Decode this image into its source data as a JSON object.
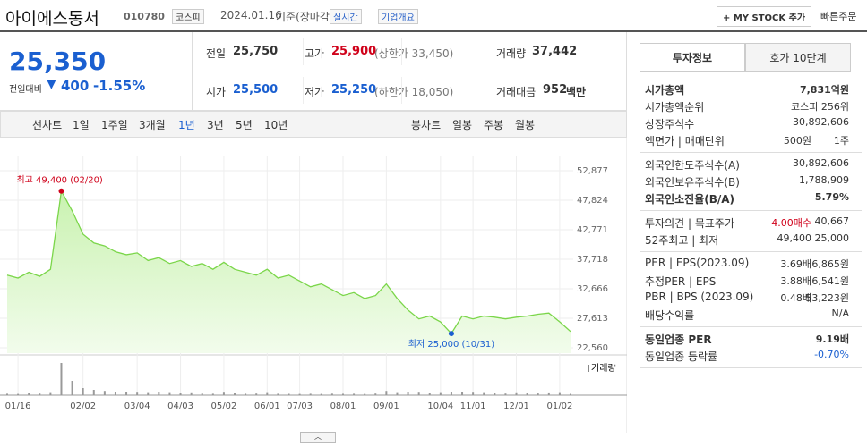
{
  "header": {
    "name": "아이에스동서",
    "code": "010780",
    "market": "코스피",
    "date": "2024.01.16",
    "basis": "기준(장마감)",
    "realtime": "실시간",
    "company": "기업개요",
    "mystock": "+ MY STOCK 추가",
    "order": "빠른주문"
  },
  "quote": {
    "price": "25,350",
    "change_label": "전일대비",
    "change": "400",
    "change_pct": "-1.55%"
  },
  "summary": [
    {
      "label": "전일",
      "value": "25,750"
    },
    {
      "label": "고가",
      "value": "25,900",
      "note": "(상한가 33,450)"
    },
    {
      "label": "거래량",
      "value": "37,442"
    },
    {
      "label": "시가",
      "value": "25,500"
    },
    {
      "label": "저가",
      "value": "25,250",
      "note": "(하한가 18,050)"
    },
    {
      "label": "거래대금",
      "value": "952",
      "note": "백만"
    }
  ],
  "periods": {
    "label": "선차트",
    "items": [
      "1일",
      "1주일",
      "3개월",
      "1년",
      "3년",
      "5년",
      "10년"
    ],
    "candle_label": "봉차트",
    "candle_items": [
      "일봉",
      "주봉",
      "월봉"
    ]
  },
  "chart_data": {
    "type": "line",
    "color": "#7bd64a",
    "categories": [
      null,
      "01/16",
      null,
      null,
      null,
      null,
      null,
      "02/02",
      null,
      null,
      null,
      null,
      "03/04",
      null,
      null,
      null,
      "04/03",
      null,
      null,
      null,
      "05/02",
      null,
      null,
      null,
      "06/01",
      null,
      null,
      "07/03",
      null,
      null,
      null,
      "08/01",
      null,
      null,
      null,
      "09/01",
      null,
      null,
      null,
      null,
      "10/04",
      null,
      null,
      "11/01",
      null,
      null,
      null,
      "12/01",
      null,
      null,
      null,
      "01/02",
      null
    ],
    "values": [
      35000,
      34500,
      35500,
      34800,
      36000,
      49400,
      46000,
      42000,
      40500,
      40000,
      39000,
      38500,
      38800,
      37500,
      38000,
      37000,
      37500,
      36500,
      37000,
      36000,
      37200,
      36000,
      35500,
      35000,
      36000,
      34500,
      35000,
      34000,
      33000,
      33500,
      32500,
      31500,
      32000,
      31000,
      31500,
      33500,
      31000,
      29000,
      27500,
      28000,
      27000,
      25000,
      28000,
      27500,
      28000,
      27800,
      27500,
      27800,
      28000,
      28300,
      28500,
      27000,
      25350
    ],
    "volume_name": "거래량",
    "volume": [
      40000,
      35000,
      50000,
      45000,
      60000,
      900000,
      400000,
      200000,
      150000,
      120000,
      90000,
      80000,
      70000,
      60000,
      80000,
      60000,
      50000,
      55000,
      45000,
      40000,
      70000,
      50000,
      40000,
      45000,
      60000,
      40000,
      38000,
      35000,
      40000,
      36000,
      42000,
      38000,
      40000,
      35000,
      45000,
      120000,
      60000,
      80000,
      70000,
      50000,
      60000,
      90000,
      100000,
      70000,
      60000,
      50000,
      45000,
      55000,
      50000,
      48000,
      52000,
      60000,
      37442
    ],
    "ylim": [
      22560,
      52877
    ],
    "yticks": [
      {
        "value": 22560,
        "label": "22,560"
      },
      {
        "value": 27613,
        "label": "27,613"
      },
      {
        "value": 32666,
        "label": "32,666"
      },
      {
        "value": 37718,
        "label": "37,718"
      },
      {
        "value": 42771,
        "label": "42,771"
      },
      {
        "value": 47824,
        "label": "47,824"
      },
      {
        "value": 52877,
        "label": "52,877"
      }
    ],
    "max_label": "최고 49,400 (02/20)",
    "min_label": "최저 25,000 (10/31)"
  },
  "info": {
    "tabs": [
      "투자정보",
      "호가 10단계"
    ],
    "groups": [
      [
        {
          "label": "시가총액",
          "values": [
            "7,831억원"
          ],
          "bold": true
        },
        {
          "label": "시가총액순위",
          "values": [
            "코스피 256위"
          ]
        },
        {
          "label": "상장주식수",
          "values": [
            "30,892,606"
          ]
        },
        {
          "label": "액면가 | 매매단위",
          "values": [
            "500원",
            "1주"
          ]
        }
      ],
      [
        {
          "label": "외국인한도주식수(A)",
          "values": [
            "30,892,606"
          ]
        },
        {
          "label": "외국인보유주식수(B)",
          "values": [
            "1,788,909"
          ]
        },
        {
          "label": "외국인소진율(B/A)",
          "values": [
            "5.79%"
          ],
          "bold": true
        }
      ],
      [
        {
          "label": "투자의견 | 목표주가",
          "values": [
            "4.00매수",
            "40,667"
          ]
        },
        {
          "label": "52주최고 | 최저",
          "values": [
            "49,400",
            "25,000"
          ]
        }
      ],
      [
        {
          "label": "PER | EPS(2023.09)",
          "values": [
            "3.69배",
            "6,865원"
          ]
        },
        {
          "label": "추정PER | EPS",
          "values": [
            "3.88배",
            "6,541원"
          ]
        },
        {
          "label": "PBR | BPS (2023.09)",
          "values": [
            "0.48배",
            "53,223원"
          ]
        },
        {
          "label": "배당수익률",
          "values": [
            "N/A"
          ]
        }
      ],
      [
        {
          "label": "동일업종 PER",
          "values": [
            "9.19배"
          ],
          "bold": true
        },
        {
          "label": "동일업종 등락률",
          "values": [
            "-0.70%"
          ]
        }
      ]
    ]
  }
}
